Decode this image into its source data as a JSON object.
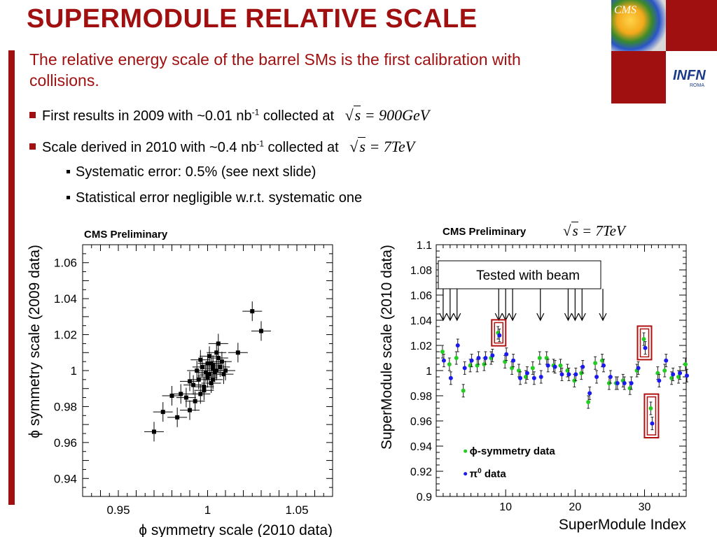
{
  "slide": {
    "title": "SUPERMODULE RELATIVE SCALE",
    "intro": "The relative energy scale of the barrel SMs is the first calibration with collisions.",
    "bullets": [
      {
        "pre": "First results in 2009 with ~0.01 nb",
        "sup": "-1",
        "post": " collected at",
        "math": "900GeV"
      },
      {
        "pre": "Scale derived in 2010 with ~0.4 nb",
        "sup": "-1",
        "post": " collected at",
        "math": "7TeV"
      }
    ],
    "subbullets": [
      "Systematic error: 0.5% (see next slide)",
      "Statistical error negligible w.r.t. systematic one"
    ],
    "logos": {
      "cms": "CMS",
      "infn": "INFN",
      "infn_sub": "ROMA"
    },
    "colors": {
      "accent": "#a01010",
      "green": "#22cc22",
      "blue": "#1a1aee"
    }
  },
  "chart_data": [
    {
      "type": "scatter",
      "title": "CMS Preliminary",
      "xlabel": "ϕ symmetry scale (2010 data)",
      "ylabel": "ϕ symmetry scale (2009 data)",
      "xlim": [
        0.93,
        1.07
      ],
      "ylim": [
        0.93,
        1.07
      ],
      "xticks": [
        "0.95",
        "1",
        "1.05"
      ],
      "yticks": [
        "0.94",
        "0.96",
        "0.98",
        "1",
        "1.02",
        "1.04",
        "1.06"
      ],
      "x": [
        0.97,
        0.975,
        0.98,
        0.983,
        0.985,
        0.988,
        0.99,
        0.992,
        0.993,
        0.995,
        0.996,
        0.997,
        0.998,
        0.999,
        1.0,
        1.0,
        1.001,
        1.001,
        1.002,
        1.002,
        1.003,
        1.003,
        1.004,
        1.005,
        1.005,
        1.006,
        1.007,
        1.008,
        1.009,
        1.01,
        1.017,
        1.025,
        1.03,
        0.994,
        0.998,
        1.003,
        1.006,
        0.99,
        0.996,
        1.0
      ],
      "y": [
        0.966,
        0.977,
        0.986,
        0.974,
        0.987,
        0.985,
        0.978,
        0.992,
        0.983,
        0.995,
        0.987,
        1.002,
        0.991,
        0.999,
        1.004,
        0.996,
        1.008,
        0.998,
        1.004,
        0.993,
        1.001,
        1.003,
        0.999,
        1.0,
        1.01,
        1.015,
        1.002,
        1.005,
        0.998,
        1.0,
        1.01,
        1.033,
        1.022,
        1.0,
        0.989,
        0.995,
        1.007,
        0.994,
        1.006,
        0.997
      ]
    },
    {
      "type": "scatter",
      "title": "CMS Preliminary",
      "title_math": "7TeV",
      "xlabel": "SuperModule Index",
      "ylabel": "SuperModule scale (2010 data)",
      "xlim": [
        0,
        36
      ],
      "ylim": [
        0.9,
        1.1
      ],
      "xticks": [
        "10",
        "20",
        "30"
      ],
      "yticks": [
        "0.9",
        "0.92",
        "0.94",
        "0.96",
        "0.98",
        "1",
        "1.02",
        "1.04",
        "1.06",
        "1.08",
        "1.1"
      ],
      "annotation": "Tested with beam",
      "tested_sm": [
        1,
        2,
        3,
        9,
        10,
        11,
        15,
        19,
        20,
        21,
        24
      ],
      "highlighted_sm": [
        9,
        30,
        31
      ],
      "series": [
        {
          "name": "ϕ-symmetry data",
          "color": "#22cc22",
          "x": [
            1,
            2,
            3,
            4,
            5,
            6,
            7,
            8,
            9,
            10,
            11,
            12,
            13,
            14,
            15,
            16,
            17,
            18,
            19,
            20,
            21,
            22,
            23,
            24,
            25,
            26,
            27,
            28,
            29,
            30,
            31,
            32,
            33,
            34,
            35,
            36
          ],
          "y": [
            1.015,
            1.005,
            1.01,
            0.984,
            1.004,
            1.004,
            1.005,
            1.01,
            1.03,
            1.007,
            1.002,
            1.0,
            0.995,
            1.002,
            1.01,
            1.01,
            1.004,
            1.004,
            1.0,
            0.992,
            0.998,
            0.975,
            1.006,
            1.008,
            0.99,
            0.99,
            0.992,
            0.986,
            1.0,
            1.025,
            0.97,
            0.998,
            1.0,
            0.994,
            0.995,
            1.005
          ]
        },
        {
          "name": "π⁰ data",
          "color": "#1a1aee",
          "x": [
            1,
            2,
            3,
            4,
            5,
            6,
            7,
            8,
            9,
            10,
            11,
            12,
            13,
            14,
            15,
            16,
            17,
            18,
            19,
            20,
            21,
            22,
            23,
            24,
            25,
            26,
            27,
            28,
            29,
            30,
            31,
            32,
            33,
            34,
            35,
            36
          ],
          "y": [
            1.008,
            0.994,
            1.02,
            1.002,
            1.008,
            1.01,
            1.01,
            1.012,
            1.028,
            1.013,
            1.008,
            0.994,
            0.998,
            0.994,
            0.995,
            1.004,
            1.003,
            0.997,
            0.997,
            0.997,
            1.003,
            0.982,
            0.995,
            1.004,
            0.995,
            0.99,
            0.99,
            0.99,
            1.002,
            1.018,
            0.958,
            0.992,
            1.008,
            0.997,
            0.998,
            0.996
          ]
        }
      ],
      "legend": [
        {
          "label_greek": "ϕ",
          "label_text": "-symmetry data"
        },
        {
          "label_greek": "π",
          "label_sup": "0",
          "label_text": " data"
        }
      ]
    }
  ]
}
